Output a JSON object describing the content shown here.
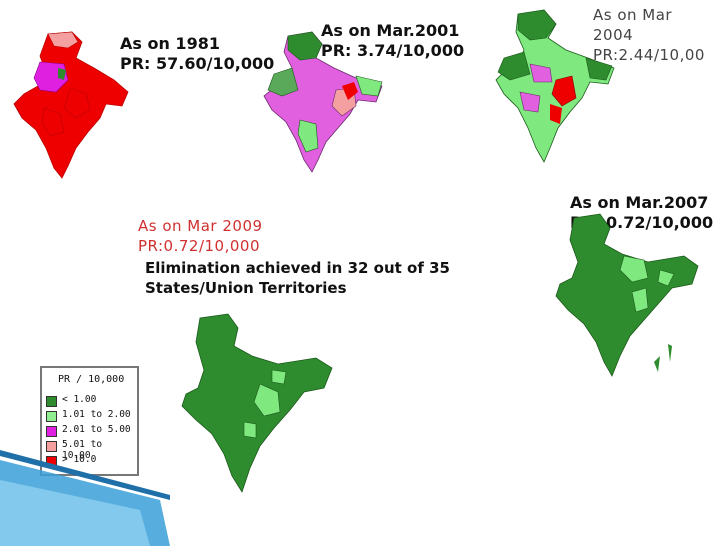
{
  "labels": {
    "y1981": "As on 1981\nPR: 57.60/10,000",
    "y2001": "As on Mar.2001\nPR: 3.74/10,000",
    "y2004": "As on Mar\n2004\nPR:2.44/10,00",
    "y2007": "As on Mar.2007\nPR: 0.72/10,000",
    "y2009": "As on Mar 2009\nPR:0.72/10,000",
    "elimination": "Elimination achieved in 32 out of 35\nStates/Union Territories"
  },
  "legend": {
    "title": "PR / 10,000",
    "items": [
      {
        "label": "< 1.00",
        "color": "#2e8b2e"
      },
      {
        "label": "1.01 to  2.00",
        "color": "#90ee90"
      },
      {
        "label": "2.01 to  5.00",
        "color": "#e020e0"
      },
      {
        "label": "5.01 to 10.00",
        "color": "#f4a0a0"
      },
      {
        "label": "> 10.0",
        "color": "#ee0000"
      }
    ]
  },
  "colors": {
    "high": "#ee0000",
    "pink": "#f4a0a0",
    "magenta": "#e060e0",
    "light_green": "#7fe87f",
    "dark_green": "#2e8b2e",
    "mid_green": "#5aa85a",
    "deco_blue": "#3aa0d8"
  }
}
